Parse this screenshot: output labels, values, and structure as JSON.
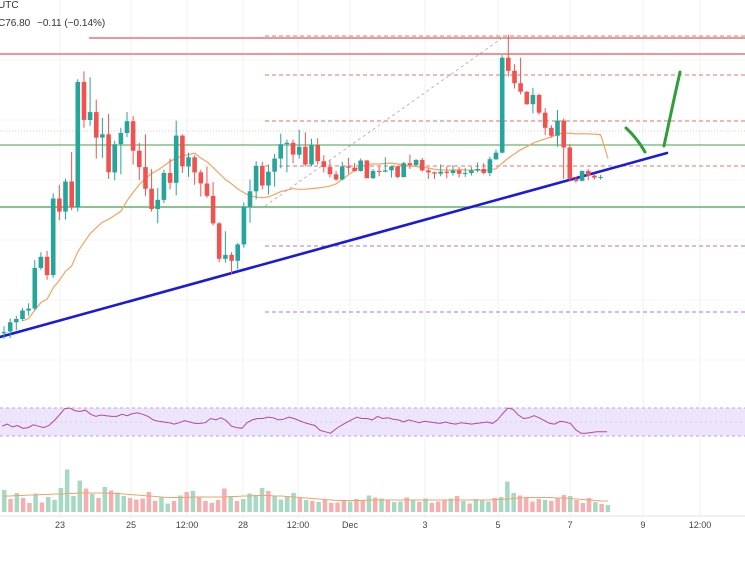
{
  "header": {
    "timezone": "UTC",
    "quote": "C76.80",
    "change": "−0.11 (−0.14%)"
  },
  "colors": {
    "up": "#26a69a",
    "down": "#ef5350",
    "resistance": "#d32f2f",
    "support": "#43a047",
    "trendline": "#1a1adb",
    "sma": "#f5a35f",
    "rsi_line": "#b5489b",
    "rsi_band": "#ede5fb",
    "projection": "#2e9e3a",
    "level_dashed": "#e57373",
    "level_dashed_purple": "#a57bc9"
  },
  "chart_data": [
    {
      "type": "candlestick",
      "x_tick_labels": [
        "23",
        "25",
        "12:00",
        "28",
        "12:00",
        "Dec",
        "3",
        "5",
        "7",
        "9",
        "12:00"
      ],
      "ohlc": [
        [
          1.0,
          2.1,
          0.2,
          1.2
        ],
        [
          1.3,
          3.3,
          0.3,
          2.7
        ],
        [
          2.7,
          3.7,
          1.5,
          3.2
        ],
        [
          3.2,
          4.9,
          2.9,
          4.5
        ],
        [
          4.5,
          5.6,
          3.7,
          4.8
        ],
        [
          4.8,
          12.2,
          4.5,
          11.0
        ],
        [
          11.0,
          13.4,
          10.7,
          12.7
        ],
        [
          12.7,
          13.6,
          9.2,
          9.9
        ],
        [
          9.9,
          22.4,
          9.5,
          21.6
        ],
        [
          21.6,
          23.7,
          18.3,
          19.6
        ],
        [
          19.6,
          24.6,
          18.4,
          24.2
        ],
        [
          24.2,
          28.7,
          19.8,
          20.3
        ],
        [
          20.3,
          39.8,
          19.6,
          39.4
        ],
        [
          39.4,
          41.0,
          32.4,
          33.6
        ],
        [
          33.6,
          40.1,
          32.7,
          34.8
        ],
        [
          34.8,
          36.7,
          27.7,
          30.9
        ],
        [
          30.9,
          33.9,
          27.8,
          31.4
        ],
        [
          31.4,
          34.5,
          24.6,
          25.6
        ],
        [
          25.6,
          30.4,
          24.4,
          29.9
        ],
        [
          29.9,
          32.4,
          25.3,
          31.6
        ],
        [
          31.6,
          34.8,
          31.0,
          33.4
        ],
        [
          33.4,
          34.2,
          26.8,
          28.9
        ],
        [
          28.9,
          30.1,
          24.4,
          26.4
        ],
        [
          26.4,
          31.4,
          22.0,
          23.1
        ],
        [
          23.1,
          26.1,
          19.6,
          20.0
        ],
        [
          20.0,
          23.2,
          17.8,
          21.4
        ],
        [
          21.4,
          26.0,
          20.9,
          25.5
        ],
        [
          25.5,
          27.7,
          23.0,
          24.0
        ],
        [
          24.0,
          33.5,
          22.1,
          31.2
        ],
        [
          31.2,
          31.4,
          25.5,
          26.5
        ],
        [
          26.5,
          28.6,
          24.9,
          27.9
        ],
        [
          27.9,
          28.2,
          23.7,
          25.6
        ],
        [
          25.6,
          26.0,
          21.9,
          23.9
        ],
        [
          23.9,
          26.5,
          21.7,
          22.0
        ],
        [
          22.0,
          24.1,
          17.5,
          17.8
        ],
        [
          17.8,
          18.0,
          11.9,
          12.4
        ],
        [
          12.4,
          16.6,
          11.8,
          13.0
        ],
        [
          13.0,
          13.4,
          10.1,
          12.1
        ],
        [
          12.1,
          14.8,
          10.8,
          14.6
        ],
        [
          14.6,
          21.0,
          14.1,
          20.4
        ],
        [
          20.4,
          24.5,
          17.9,
          22.7
        ],
        [
          22.7,
          27.3,
          21.5,
          26.6
        ],
        [
          26.6,
          27.2,
          23.0,
          23.6
        ],
        [
          23.6,
          26.8,
          22.2,
          25.7
        ],
        [
          25.7,
          28.4,
          23.4,
          27.7
        ],
        [
          27.7,
          31.5,
          26.2,
          29.9
        ],
        [
          29.9,
          30.6,
          25.6,
          30.1
        ],
        [
          30.1,
          30.6,
          27.0,
          28.3
        ],
        [
          28.3,
          32.1,
          27.7,
          29.5
        ],
        [
          29.5,
          31.7,
          26.5,
          26.8
        ],
        [
          26.8,
          30.7,
          26.5,
          29.7
        ],
        [
          29.7,
          30.8,
          26.8,
          27.3
        ],
        [
          27.3,
          28.2,
          25.6,
          26.4
        ],
        [
          26.4,
          27.4,
          24.8,
          25.3
        ],
        [
          25.3,
          25.8,
          24.3,
          24.5
        ],
        [
          24.5,
          27.2,
          24.4,
          26.5
        ],
        [
          26.5,
          27.8,
          25.4,
          26.3
        ],
        [
          26.3,
          27.0,
          25.7,
          25.8
        ],
        [
          25.8,
          27.7,
          25.7,
          27.4
        ],
        [
          27.4,
          27.5,
          24.7,
          24.7
        ],
        [
          24.7,
          26.1,
          24.6,
          25.8
        ],
        [
          25.8,
          26.5,
          25.0,
          25.7
        ],
        [
          25.7,
          27.9,
          25.6,
          25.9
        ],
        [
          25.9,
          26.6,
          24.8,
          26.5
        ],
        [
          26.5,
          26.6,
          24.7,
          24.9
        ],
        [
          24.9,
          27.2,
          24.8,
          27.0
        ],
        [
          27.0,
          28.3,
          26.1,
          26.7
        ],
        [
          26.7,
          27.6,
          26.5,
          27.5
        ],
        [
          27.5,
          27.8,
          25.7,
          25.9
        ],
        [
          25.9,
          26.2,
          24.6,
          25.6
        ],
        [
          25.6,
          25.7,
          24.6,
          25.4
        ],
        [
          25.4,
          26.8,
          25.0,
          25.7
        ],
        [
          25.7,
          26.5,
          24.7,
          25.5
        ],
        [
          25.5,
          26.7,
          25.1,
          25.9
        ],
        [
          25.9,
          26.4,
          24.8,
          25.4
        ],
        [
          25.4,
          26.3,
          24.9,
          25.5
        ],
        [
          25.5,
          26.4,
          25.1,
          25.9
        ],
        [
          25.9,
          27.1,
          25.6,
          26.1
        ],
        [
          26.1,
          27.0,
          25.3,
          25.5
        ],
        [
          25.5,
          28.0,
          25.0,
          27.6
        ],
        [
          27.6,
          29.1,
          27.5,
          28.6
        ],
        [
          28.6,
          43.5,
          28.5,
          43.1
        ],
        [
          43.1,
          46.6,
          40.2,
          41.1
        ],
        [
          41.1,
          42.1,
          38.4,
          39.2
        ],
        [
          39.2,
          43.1,
          37.5,
          37.9
        ],
        [
          37.9,
          38.0,
          35.9,
          36.0
        ],
        [
          36.0,
          38.5,
          34.6,
          37.4
        ],
        [
          37.4,
          37.6,
          34.4,
          34.7
        ],
        [
          34.7,
          35.4,
          31.3,
          32.4
        ],
        [
          32.4,
          32.8,
          30.9,
          31.2
        ],
        [
          31.2,
          35.1,
          29.5,
          33.5
        ],
        [
          33.5,
          33.8,
          24.6,
          29.4
        ],
        [
          29.4,
          29.9,
          24.2,
          24.6
        ],
        [
          24.6,
          24.9,
          24.0,
          24.3
        ],
        [
          24.3,
          25.9,
          24.2,
          25.8
        ],
        [
          25.8,
          26.1,
          24.4,
          25.1
        ],
        [
          25.1,
          25.4,
          24.5,
          24.8
        ],
        [
          24.8,
          25.2,
          24.5,
          24.9
        ]
      ]
    },
    {
      "type": "line",
      "name": "RSI",
      "band": [
        30,
        70
      ],
      "ylim": [
        0,
        100
      ],
      "values": [
        44,
        47,
        43,
        45,
        41,
        42,
        46,
        44,
        42,
        45,
        52,
        60,
        69,
        70,
        66,
        65,
        67,
        61,
        58,
        60,
        59,
        58,
        58,
        61,
        59,
        62,
        63,
        61,
        58,
        53,
        51,
        50,
        49,
        47,
        49,
        52,
        50,
        48,
        48,
        49,
        55,
        53,
        56,
        52,
        44,
        42,
        41,
        49,
        53,
        55,
        55,
        57,
        56,
        53,
        54,
        57,
        55,
        52,
        49,
        47,
        45,
        38,
        36,
        34,
        40,
        45,
        49,
        53,
        57,
        55,
        55,
        53,
        58,
        55,
        56,
        54,
        53,
        50,
        53,
        51,
        49,
        51,
        50,
        49,
        48,
        50,
        48,
        47,
        49,
        48,
        47,
        48,
        49,
        50,
        48,
        53,
        62,
        70,
        68,
        60,
        55,
        56,
        59,
        56,
        52,
        48,
        47,
        51,
        50,
        48,
        39,
        34,
        34,
        35,
        36,
        36,
        36
      ]
    },
    {
      "type": "bar",
      "name": "Volume",
      "ylim": [
        0,
        100
      ],
      "values": [
        44,
        26,
        38,
        28,
        18,
        37,
        19,
        30,
        24,
        48,
        85,
        32,
        63,
        47,
        36,
        28,
        50,
        43,
        39,
        32,
        28,
        25,
        27,
        40,
        22,
        29,
        17,
        22,
        33,
        40,
        42,
        30,
        22,
        18,
        24,
        47,
        31,
        22,
        26,
        37,
        34,
        48,
        42,
        33,
        25,
        30,
        38,
        28,
        24,
        22,
        20,
        24,
        18,
        19,
        22,
        21,
        26,
        24,
        33,
        29,
        27,
        23,
        20,
        21,
        29,
        23,
        20,
        27,
        18,
        21,
        25,
        27,
        32,
        22,
        17,
        26,
        23,
        21,
        28,
        30,
        61,
        38,
        33,
        28,
        21,
        26,
        24,
        22,
        29,
        34,
        32,
        24,
        18,
        28,
        20,
        16,
        14
      ],
      "direction": [
        "up",
        "down",
        "up",
        "down",
        "down",
        "up",
        "down",
        "up",
        "up",
        "up",
        "up",
        "up",
        "up",
        "down",
        "up",
        "down",
        "up",
        "down",
        "up",
        "up",
        "down",
        "down",
        "down",
        "down",
        "down",
        "up",
        "up",
        "down",
        "up",
        "down",
        "up",
        "down",
        "down",
        "down",
        "down",
        "down",
        "up",
        "down",
        "up",
        "up",
        "up",
        "up",
        "down",
        "up",
        "up",
        "up",
        "up",
        "down",
        "up",
        "down",
        "up",
        "down",
        "down",
        "down",
        "down",
        "up",
        "down",
        "down",
        "up",
        "down",
        "up",
        "down",
        "up",
        "up",
        "down",
        "up",
        "down",
        "up",
        "down",
        "down",
        "down",
        "up",
        "down",
        "up",
        "down",
        "up",
        "up",
        "up",
        "down",
        "up",
        "up",
        "up",
        "down",
        "down",
        "down",
        "down",
        "up",
        "down",
        "down",
        "down",
        "up",
        "down",
        "down",
        "down",
        "up",
        "down",
        "up"
      ],
      "volume_ma": [
        32,
        32,
        33,
        33,
        34,
        34,
        35,
        35,
        36,
        36,
        37,
        37,
        38,
        38,
        38,
        38,
        38,
        37,
        37,
        36,
        35,
        34,
        33,
        32,
        31,
        30,
        29,
        29,
        29,
        29,
        30,
        30,
        30,
        30,
        30,
        30,
        31,
        31,
        32,
        32,
        33,
        33,
        33,
        32,
        32,
        31,
        30,
        29,
        28,
        27,
        26,
        25,
        24,
        23,
        23,
        23,
        23,
        23,
        24,
        24,
        24,
        24,
        24,
        24,
        24,
        24,
        24,
        24,
        24,
        24,
        24,
        24,
        24,
        24,
        24,
        24,
        24,
        24,
        25,
        25,
        26,
        27,
        28,
        29,
        29,
        29,
        29,
        29,
        28,
        28,
        27,
        26,
        25,
        24,
        23,
        22,
        22
      ]
    }
  ]
}
